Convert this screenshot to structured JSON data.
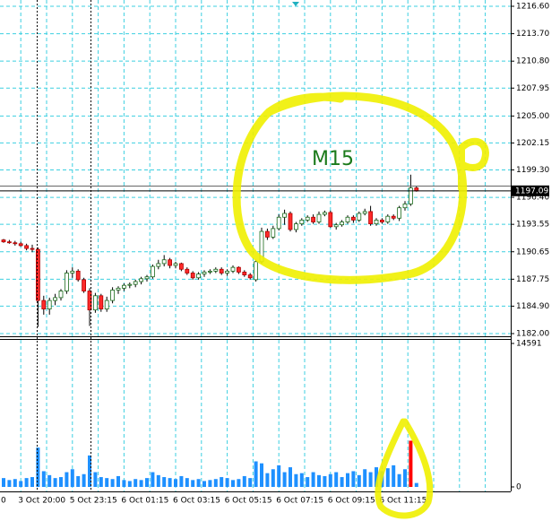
{
  "chart_data": [
    {
      "type": "candlestick",
      "categories": [
        "0",
        null,
        null,
        "3 Oct 20:00",
        null,
        null,
        null,
        null,
        null,
        null,
        null,
        null,
        "5 Oct 23:15",
        null,
        null,
        null,
        null,
        null,
        null,
        null,
        null,
        "6 Oct 01:15",
        null,
        null,
        null,
        null,
        null,
        null,
        null,
        null,
        "6 Oct 03:15",
        null,
        null,
        null,
        null,
        null,
        null,
        null,
        null,
        "6 Oct 05:15",
        null,
        null,
        null,
        null,
        null,
        null,
        null,
        null,
        "6 Oct 07:15",
        null,
        null,
        null,
        null,
        null,
        null,
        null,
        null,
        "6 Oct 09:15",
        null,
        null,
        null,
        null,
        null,
        null,
        null,
        null,
        "6 Oct 11:15",
        null,
        null,
        null,
        null,
        null,
        null
      ],
      "open": [
        1191.9,
        1191.7,
        1191.6,
        1191.5,
        1191.3,
        1191.0,
        1190.9,
        1185.5,
        1184.6,
        1185.5,
        1185.8,
        1186.5,
        1188.4,
        1188.6,
        1187.7,
        1186.5,
        1184.5,
        1186.0,
        1184.6,
        1185.5,
        1186.6,
        1186.8,
        1187.1,
        1187.2,
        1187.5,
        1187.8,
        1188.0,
        1189.1,
        1189.4,
        1189.8,
        1189.2,
        1189.4,
        1188.8,
        1188.4,
        1187.9,
        1188.3,
        1188.5,
        1188.6,
        1188.8,
        1188.4,
        1188.6,
        1189.0,
        1188.5,
        1188.2,
        1187.7,
        1189.6,
        1192.8,
        1192.2,
        1193.1,
        1194.3,
        1194.7,
        1193.0,
        1193.6,
        1194.0,
        1194.3,
        1193.8,
        1194.6,
        1194.8,
        1193.3,
        1193.5,
        1193.8,
        1194.3,
        1194.0,
        1194.7,
        1194.9,
        1193.6,
        1194.0,
        1193.8,
        1194.4,
        1194.2,
        1195.3,
        1195.7,
        1197.4
      ],
      "high": [
        1192.0,
        1191.9,
        1191.8,
        1191.7,
        1191.5,
        1191.4,
        1191.1,
        1186.0,
        1185.8,
        1186.2,
        1186.7,
        1188.7,
        1189.0,
        1188.8,
        1187.9,
        1186.8,
        1186.3,
        1186.2,
        1185.9,
        1186.9,
        1187.0,
        1187.3,
        1187.4,
        1187.7,
        1188.0,
        1188.2,
        1189.3,
        1189.8,
        1190.3,
        1190.0,
        1189.6,
        1189.5,
        1189.0,
        1188.6,
        1188.5,
        1188.7,
        1188.8,
        1189.0,
        1189.0,
        1188.8,
        1189.2,
        1189.1,
        1188.7,
        1188.4,
        1189.8,
        1193.2,
        1193.1,
        1193.4,
        1194.6,
        1195.1,
        1194.9,
        1193.8,
        1194.2,
        1194.5,
        1194.6,
        1194.9,
        1195.0,
        1195.0,
        1193.7,
        1194.0,
        1194.5,
        1194.5,
        1194.9,
        1195.2,
        1195.5,
        1194.2,
        1194.2,
        1194.6,
        1194.6,
        1195.5,
        1196.0,
        1198.8,
        1197.6
      ],
      "low": [
        1191.6,
        1191.5,
        1191.3,
        1191.2,
        1190.8,
        1190.6,
        1182.7,
        1184.0,
        1184.0,
        1185.0,
        1185.5,
        1186.2,
        1187.9,
        1187.5,
        1186.3,
        1182.8,
        1184.2,
        1184.3,
        1184.3,
        1185.2,
        1186.2,
        1186.5,
        1186.8,
        1186.9,
        1187.2,
        1187.5,
        1187.8,
        1188.8,
        1189.1,
        1188.9,
        1188.9,
        1188.6,
        1188.2,
        1187.7,
        1187.7,
        1188.0,
        1188.3,
        1188.4,
        1188.2,
        1188.1,
        1188.4,
        1188.3,
        1188.0,
        1187.7,
        1187.5,
        1189.4,
        1191.9,
        1192.0,
        1192.9,
        1193.5,
        1192.8,
        1192.7,
        1193.4,
        1193.8,
        1193.6,
        1193.6,
        1194.4,
        1193.2,
        1193.0,
        1193.3,
        1193.6,
        1193.7,
        1193.8,
        1194.5,
        1193.4,
        1193.4,
        1193.6,
        1193.6,
        1194.0,
        1193.9,
        1195.0,
        1195.5,
        1197.0
      ],
      "close": [
        1191.7,
        1191.6,
        1191.5,
        1191.3,
        1191.0,
        1190.9,
        1185.5,
        1184.6,
        1185.5,
        1185.8,
        1186.5,
        1188.4,
        1188.6,
        1187.7,
        1186.5,
        1184.5,
        1186.0,
        1184.6,
        1185.5,
        1186.6,
        1186.8,
        1187.1,
        1187.2,
        1187.5,
        1187.8,
        1188.0,
        1189.1,
        1189.4,
        1189.8,
        1189.2,
        1189.4,
        1188.8,
        1188.4,
        1187.9,
        1188.3,
        1188.5,
        1188.6,
        1188.8,
        1188.4,
        1188.6,
        1189.0,
        1188.5,
        1188.2,
        1187.9,
        1189.6,
        1192.8,
        1192.2,
        1193.1,
        1194.3,
        1194.7,
        1193.0,
        1193.6,
        1194.0,
        1194.3,
        1193.8,
        1194.6,
        1194.8,
        1193.3,
        1193.5,
        1193.8,
        1194.3,
        1194.0,
        1194.7,
        1194.9,
        1193.6,
        1194.0,
        1193.8,
        1194.4,
        1194.2,
        1195.3,
        1195.7,
        1197.4,
        1197.09
      ],
      "up_color": "#ffffff",
      "down_color": "#ff2a2a",
      "ylim": [
        1182.0,
        1216.6
      ],
      "yticks": [
        {
          "value": 1182.0,
          "label": "1182.00"
        },
        {
          "value": 1184.9,
          "label": "1184.90"
        },
        1187.75,
        1190.65,
        1193.55,
        {
          "value": 1196.4,
          "label": "1196.40"
        },
        {
          "value": 1199.3,
          "label": "1199.30"
        },
        1202.15,
        {
          "value": 1205.0,
          "label": "1205.00"
        },
        1207.95,
        {
          "value": 1210.8,
          "label": "1210.80"
        },
        {
          "value": 1213.7,
          "label": "1213.70"
        },
        {
          "value": 1216.6,
          "label": "1216.60"
        }
      ],
      "grid": true,
      "last_price": 1197.09,
      "annotation": "M15"
    },
    {
      "type": "bar",
      "series": [
        {
          "color": "#1e90ff",
          "values": [
            900,
            700,
            800,
            600,
            900,
            1000,
            4000,
            1600,
            1200,
            900,
            1000,
            1500,
            1800,
            1100,
            1300,
            3200,
            1500,
            1000,
            900,
            800,
            1100,
            700,
            600,
            800,
            700,
            900,
            1500,
            1200,
            1000,
            900,
            800,
            1100,
            900,
            700,
            800,
            600,
            700,
            800,
            1000,
            900,
            700,
            800,
            1100,
            900,
            2600,
            2400,
            1400,
            1800,
            2200,
            1500,
            2000,
            1300,
            1400,
            1000,
            1500,
            1200,
            1100,
            1300,
            1500,
            1000,
            1400,
            1600,
            1200,
            1800,
            1500,
            2000,
            1600,
            1900,
            2200,
            1300,
            1800,
            null,
            400
          ]
        },
        {
          "color": "#ff0000",
          "values": [
            null,
            null,
            null,
            null,
            null,
            null,
            null,
            null,
            null,
            null,
            null,
            null,
            null,
            null,
            null,
            null,
            null,
            null,
            null,
            null,
            null,
            null,
            null,
            null,
            null,
            null,
            null,
            null,
            null,
            null,
            null,
            null,
            null,
            null,
            null,
            null,
            null,
            null,
            null,
            null,
            null,
            null,
            null,
            null,
            null,
            null,
            null,
            null,
            null,
            null,
            null,
            null,
            null,
            null,
            null,
            null,
            null,
            null,
            null,
            null,
            null,
            null,
            null,
            null,
            null,
            null,
            null,
            null,
            null,
            null,
            null,
            4700,
            null
          ]
        }
      ],
      "ylim": [
        0,
        14591
      ],
      "yticks": [
        0,
        14591
      ]
    }
  ]
}
